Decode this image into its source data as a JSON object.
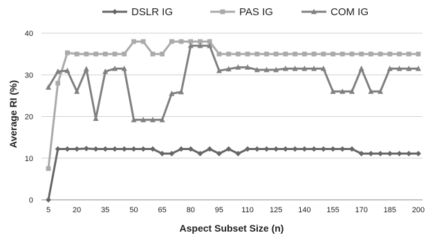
{
  "chart_data": {
    "type": "line",
    "title": "",
    "xlabel": "Aspect Subset Size (n)",
    "ylabel": "Average RI (%)",
    "ylim": [
      0,
      40
    ],
    "yticks": [
      0,
      10,
      20,
      30,
      40
    ],
    "xticks": [
      "5",
      "20",
      "35",
      "50",
      "65",
      "80",
      "95",
      "110",
      "125",
      "140",
      "155",
      "170",
      "185",
      "200"
    ],
    "x": [
      5,
      10,
      15,
      20,
      25,
      30,
      35,
      40,
      45,
      50,
      55,
      60,
      65,
      70,
      75,
      80,
      85,
      90,
      95,
      100,
      105,
      110,
      115,
      120,
      125,
      130,
      135,
      140,
      145,
      150,
      155,
      160,
      165,
      170,
      175,
      180,
      185,
      190,
      195,
      200
    ],
    "grid": "horizontal",
    "legend": "top",
    "series": [
      {
        "name": "DSLR IG",
        "color": "#666666",
        "marker": "diamond",
        "values": [
          0,
          12.2,
          12.2,
          12.2,
          12.3,
          12.2,
          12.2,
          12.2,
          12.2,
          12.2,
          12.2,
          12.2,
          11.1,
          11.1,
          12.2,
          12.2,
          11.1,
          12.2,
          11.1,
          12.2,
          11.1,
          12.2,
          12.2,
          12.2,
          12.2,
          12.2,
          12.2,
          12.2,
          12.2,
          12.2,
          12.2,
          12.2,
          12.2,
          11.1,
          11.1,
          11.1,
          11.1,
          11.1,
          11.1,
          11.1
        ]
      },
      {
        "name": "PAS IG",
        "color": "#aaaaaa",
        "marker": "square",
        "values": [
          7.5,
          28,
          35.3,
          35,
          35,
          35,
          35,
          35,
          35,
          38,
          38,
          35,
          35,
          38,
          38,
          38,
          38,
          38,
          35,
          35,
          35,
          35,
          35,
          35,
          35,
          35,
          35,
          35,
          35,
          35,
          35,
          35,
          35,
          35,
          35,
          35,
          35,
          35,
          35,
          35
        ]
      },
      {
        "name": "COM IG",
        "color": "#808080",
        "marker": "triangle",
        "values": [
          27,
          30.8,
          31,
          26,
          31.4,
          19.5,
          30.8,
          31.5,
          31.5,
          19.2,
          19.2,
          19.2,
          19.2,
          25.5,
          25.9,
          37,
          37,
          37,
          31,
          31.4,
          31.8,
          31.8,
          31.2,
          31.2,
          31.2,
          31.5,
          31.5,
          31.5,
          31.5,
          31.5,
          26,
          26,
          26,
          31.5,
          26,
          26,
          31.5,
          31.5,
          31.5,
          31.5
        ]
      }
    ]
  }
}
